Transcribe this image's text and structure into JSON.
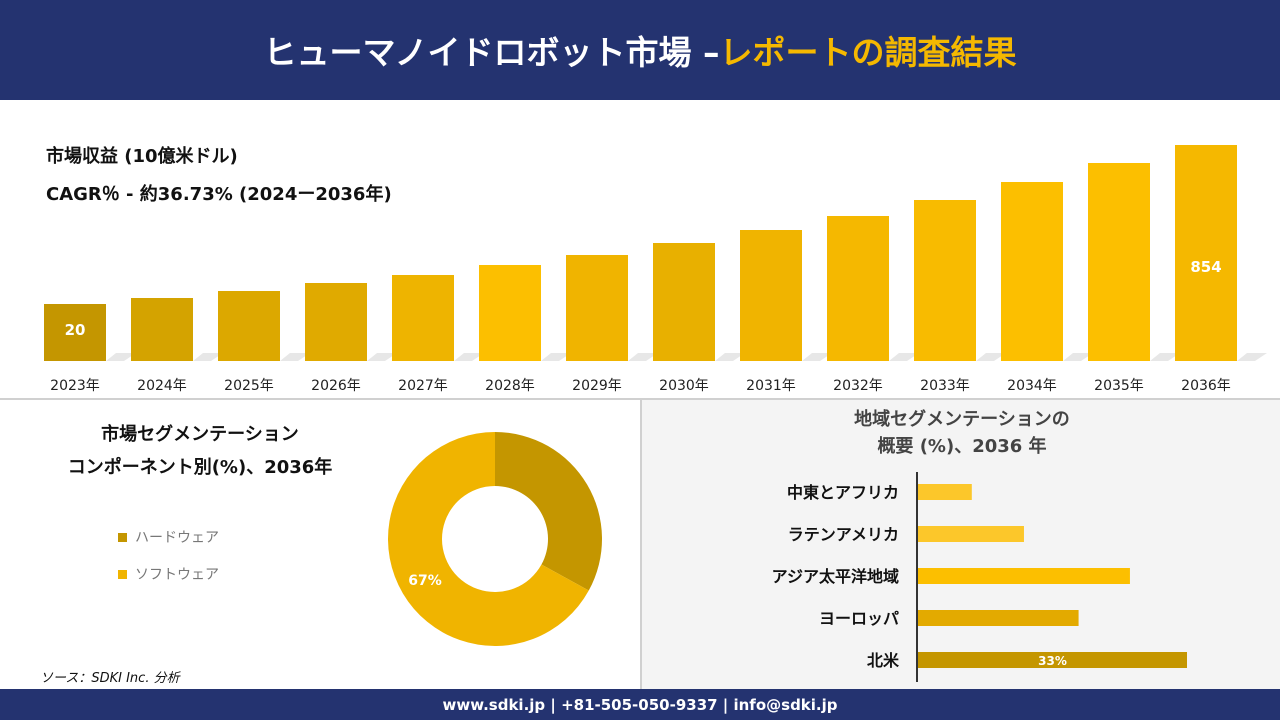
{
  "header": {
    "title_main": "ヒューマノイドロボット市場 –",
    "title_accent": "レポートの調査結果"
  },
  "revenue": {
    "label": "市場収益 (10億米ドル)",
    "cagr": "CAGR％ - 約36.73% (2024ー2036年)"
  },
  "chart_data": [
    {
      "type": "bar",
      "categories": [
        "2023年",
        "2024年",
        "2025年",
        "2026年",
        "2027年",
        "2028年",
        "2029年",
        "2030年",
        "2031年",
        "2032年",
        "2033年",
        "2034年",
        "2035年",
        "2036年"
      ],
      "data_labels": {
        "2023年": "20",
        "2036年": "854"
      },
      "colors": [
        "#c49600",
        "#d4a300",
        "#dca800",
        "#e0aa00",
        "#eeb400",
        "#fcbf00",
        "#f0b400",
        "#e8b000",
        "#f0b400",
        "#f5b800",
        "#f8bb00",
        "#fcbf00",
        "#fcbf00",
        "#f5b800"
      ]
    },
    {
      "type": "pie",
      "title": "市場セグメンテーション\nコンポーネント別(%)、2036年",
      "title_lines": [
        "市場セグメンテーション",
        "コンポーネント別(%)、2036年"
      ],
      "labels": [
        "ハードウェア",
        "ソフトウェア"
      ],
      "values": [
        33,
        67
      ],
      "data_labels": [
        "",
        "67%"
      ],
      "colors": [
        "#c49600",
        "#f0b400"
      ],
      "donut": true
    },
    {
      "type": "bar",
      "orientation": "horizontal",
      "title_lines": [
        "地域セグメンテーションの",
        "概要 (%)、2036 年"
      ],
      "categories": [
        "中東とアフリカ",
        "ラテンアメリカ",
        "アジア太平洋地域",
        "ヨーロッパ",
        "北米"
      ],
      "values": [
        6.6,
        13,
        26,
        19.7,
        33
      ],
      "data_labels": [
        "",
        "",
        "",
        "",
        "33%"
      ],
      "colors": [
        "#fcc72a",
        "#fcc72a",
        "#fcbf00",
        "#e3aa00",
        "#c49600"
      ]
    }
  ],
  "source": "ソース：SDKI Inc. 分析",
  "footer": "www.sdki.jp | +81-505-050-9337 | info@sdki.jp"
}
